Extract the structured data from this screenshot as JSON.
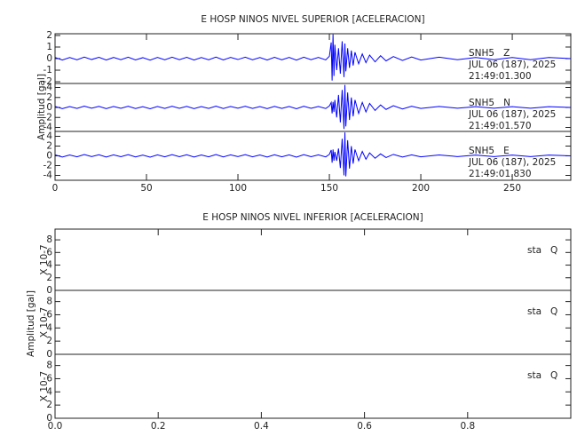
{
  "chart_data": [
    {
      "type": "line",
      "title": "E HOSP NINOS NIVEL SUPERIOR [ACELERACION]",
      "ylabel": "Amplitud [gal]",
      "xlim": [
        0,
        282
      ],
      "xticks": [
        0,
        50,
        100,
        150,
        200,
        250
      ],
      "x": [
        0,
        4,
        8,
        12,
        16,
        20,
        24,
        28,
        32,
        36,
        40,
        44,
        48,
        52,
        56,
        60,
        64,
        68,
        72,
        76,
        80,
        84,
        88,
        92,
        96,
        100,
        104,
        108,
        112,
        116,
        120,
        124,
        128,
        132,
        136,
        140,
        144,
        148,
        150,
        151,
        151.5,
        152,
        152.5,
        153,
        154,
        155,
        156,
        157,
        158,
        158.5,
        159,
        160,
        161,
        162,
        163,
        164,
        166,
        168,
        170,
        172,
        175,
        178,
        181,
        185,
        190,
        195,
        200,
        210,
        220,
        230,
        240,
        250,
        260,
        270,
        282
      ],
      "panels": [
        {
          "ylim": [
            -2.15,
            2.15
          ],
          "yticks": [
            2,
            1,
            0,
            -1,
            -2
          ],
          "labels": [
            "SNH5   Z",
            "JUL 06 (187), 2025",
            "21:49:01.300"
          ],
          "series": [
            {
              "color": "#0000ff",
              "values": [
                0.1,
                -0.12,
                0.09,
                -0.1,
                0.13,
                -0.08,
                0.11,
                -0.12,
                0.1,
                -0.09,
                0.12,
                -0.11,
                0.08,
                -0.13,
                0.1,
                -0.1,
                0.12,
                -0.09,
                0.11,
                -0.12,
                0.09,
                -0.1,
                0.13,
                -0.11,
                0.1,
                -0.08,
                0.12,
                -0.1,
                0.09,
                -0.12,
                0.11,
                -0.1,
                0.1,
                -0.13,
                0.12,
                -0.09,
                0.1,
                -0.11,
                0.2,
                1.4,
                -1.9,
                2.1,
                -1.5,
                1.2,
                -1.0,
                0.9,
                -1.3,
                1.5,
                -1.6,
                1.3,
                -1.1,
                0.9,
                -0.8,
                0.7,
                -0.6,
                0.55,
                -0.45,
                0.4,
                -0.35,
                0.3,
                -0.28,
                0.25,
                -0.2,
                0.18,
                -0.16,
                0.14,
                -0.12,
                0.12,
                -0.1,
                0.1,
                -0.1,
                0.1,
                -0.1,
                0.1,
                0
              ]
            }
          ]
        },
        {
          "ylim": [
            -4.8,
            4.8
          ],
          "yticks": [
            4,
            2,
            0,
            -2,
            -4
          ],
          "labels": [
            "SNH5   N",
            "JUL 06 (187), 2025",
            "21:49:01.570"
          ],
          "series": [
            {
              "color": "#0000ff",
              "values": [
                0.2,
                -0.24,
                0.18,
                -0.2,
                0.26,
                -0.16,
                0.22,
                -0.24,
                0.2,
                -0.18,
                0.24,
                -0.22,
                0.16,
                -0.26,
                0.2,
                -0.2,
                0.24,
                -0.18,
                0.22,
                -0.24,
                0.18,
                -0.2,
                0.26,
                -0.22,
                0.2,
                -0.16,
                0.24,
                -0.2,
                0.18,
                -0.24,
                0.22,
                -0.2,
                0.2,
                -0.26,
                0.24,
                -0.18,
                0.2,
                -0.22,
                0.3,
                1.0,
                -1.2,
                1.1,
                -0.9,
                1.5,
                -2.0,
                2.5,
                -3.0,
                3.5,
                -4.3,
                4.5,
                -3.8,
                3.0,
                -2.5,
                2.0,
                -1.8,
                1.5,
                -1.2,
                1.0,
                -0.9,
                0.8,
                -0.6,
                0.5,
                -0.4,
                0.35,
                -0.3,
                0.25,
                -0.2,
                0.2,
                -0.15,
                0.15,
                -0.15,
                0.15,
                -0.15,
                0.15,
                0
              ]
            }
          ]
        },
        {
          "ylim": [
            -5,
            5
          ],
          "yticks": [
            4,
            2,
            0,
            -2,
            -4
          ],
          "labels": [
            "SNH5   E",
            "JUL 06 (187), 2025",
            "21:49:01.830"
          ],
          "series": [
            {
              "color": "#0000ff",
              "values": [
                0.2,
                -0.24,
                0.18,
                -0.2,
                0.26,
                -0.16,
                0.22,
                -0.24,
                0.2,
                -0.18,
                0.24,
                -0.22,
                0.16,
                -0.26,
                0.2,
                -0.2,
                0.24,
                -0.18,
                0.22,
                -0.24,
                0.18,
                -0.2,
                0.26,
                -0.22,
                0.2,
                -0.16,
                0.24,
                -0.2,
                0.18,
                -0.24,
                0.22,
                -0.2,
                0.2,
                -0.26,
                0.24,
                -0.18,
                0.2,
                -0.22,
                0.3,
                1.2,
                -1.4,
                1.3,
                -1.0,
                0.8,
                -1.0,
                1.5,
                -2.5,
                3.5,
                -4.0,
                4.8,
                -4.2,
                3.2,
                -2.6,
                2.0,
                -1.6,
                1.3,
                -1.0,
                0.9,
                -0.7,
                0.6,
                -0.5,
                0.4,
                -0.35,
                0.3,
                -0.25,
                0.2,
                -0.2,
                0.18,
                -0.15,
                0.15,
                -0.15,
                0.15,
                -0.15,
                0.15,
                0
              ]
            }
          ]
        }
      ]
    },
    {
      "type": "line",
      "title": "E HOSP NINOS NIVEL INFERIOR [ACELERACION]",
      "ylabel": "Amplitud [gal]",
      "panel_ylabel": "X 10-7",
      "xlim": [
        0,
        1
      ],
      "xticks": [
        {
          "value": 0,
          "label": "0.0"
        },
        {
          "value": 0.2,
          "label": "0.2"
        },
        {
          "value": 0.4,
          "label": "0.4"
        },
        {
          "value": 0.6,
          "label": "0.6"
        },
        {
          "value": 0.8,
          "label": "0.8"
        }
      ],
      "x": [
        0,
        1
      ],
      "panels": [
        {
          "ylim": [
            0,
            9.7
          ],
          "yticks": [
            8,
            6,
            4,
            2,
            0
          ],
          "labels": [
            "sta   Q"
          ],
          "series": [
            {
              "color": "#3a3aa8",
              "values": [
                0,
                0
              ]
            }
          ]
        },
        {
          "ylim": [
            0,
            9.7
          ],
          "yticks": [
            8,
            6,
            4,
            2,
            0
          ],
          "labels": [
            "sta   Q"
          ],
          "series": [
            {
              "color": "#3a3aa8",
              "values": [
                0,
                0
              ]
            }
          ]
        },
        {
          "ylim": [
            0,
            9.7
          ],
          "yticks": [
            8,
            6,
            4,
            2,
            0
          ],
          "labels": [
            "sta   Q"
          ],
          "series": [
            {
              "color": "#3a3aa8",
              "values": [
                0,
                0
              ]
            }
          ]
        }
      ]
    }
  ]
}
